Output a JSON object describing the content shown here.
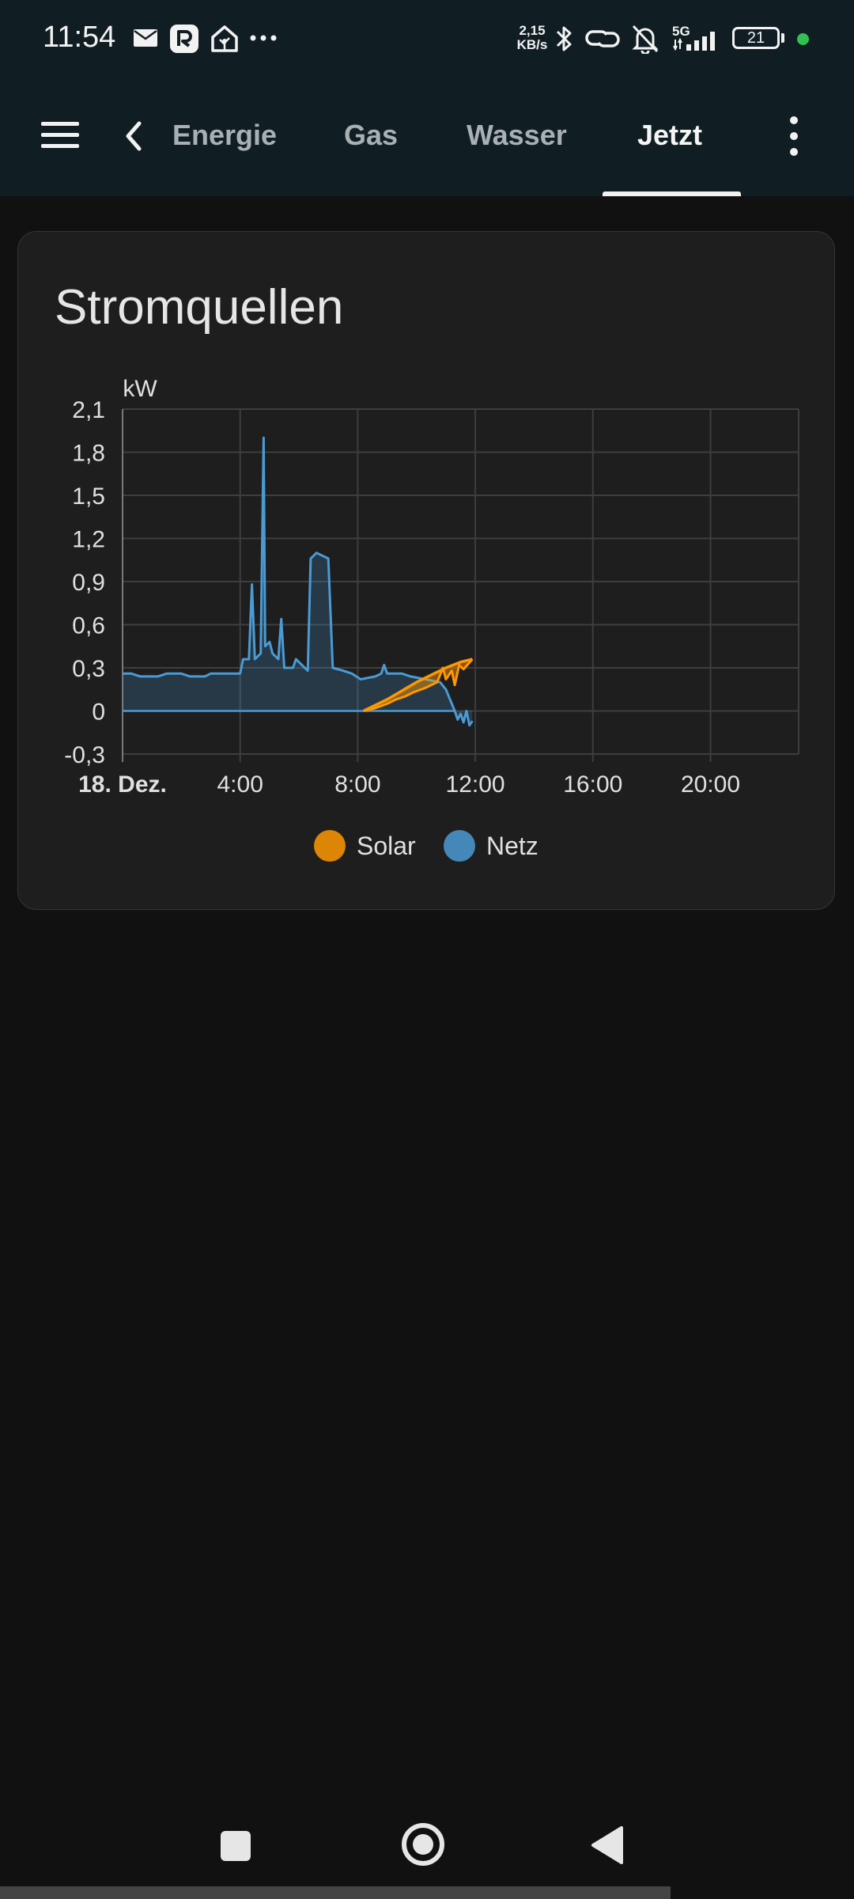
{
  "status_bar": {
    "time": "11:54",
    "net_speed_value": "2,15",
    "net_speed_unit": "KB/s",
    "network": "5G",
    "battery": "21",
    "icons": [
      "mail-icon",
      "r-app-icon",
      "home-assistant-icon",
      "more-notifications-icon",
      "bluetooth-icon",
      "link-icon",
      "bell-off-icon",
      "signal-icon",
      "battery-icon"
    ]
  },
  "toolbar": {
    "tabs": [
      {
        "label": "Energie"
      },
      {
        "label": "Gas"
      },
      {
        "label": "Wasser"
      },
      {
        "label": "Jetzt"
      }
    ],
    "active_tab": "Jetzt"
  },
  "card": {
    "title": "Stromquellen"
  },
  "chart_data": {
    "type": "area",
    "title": "Stromquellen",
    "ylabel": "kW",
    "xlabel": "",
    "ylim": [
      -0.3,
      2.1
    ],
    "xlim": [
      0,
      23
    ],
    "y_ticks": [
      "2,1",
      "1,8",
      "1,5",
      "1,2",
      "0,9",
      "0,6",
      "0,3",
      "0",
      "-0,3"
    ],
    "x_ticks": [
      "18. Dez.",
      "4:00",
      "8:00",
      "12:00",
      "16:00",
      "20:00"
    ],
    "grid": true,
    "legend_position": "bottom",
    "series": [
      {
        "name": "Solar",
        "color": "#ff9800",
        "points": [
          [
            8.2,
            0.0
          ],
          [
            8.6,
            0.04
          ],
          [
            9.0,
            0.08
          ],
          [
            9.5,
            0.14
          ],
          [
            10.0,
            0.2
          ],
          [
            10.5,
            0.25
          ],
          [
            11.0,
            0.3
          ],
          [
            11.5,
            0.34
          ],
          [
            11.9,
            0.36
          ]
        ],
        "lower": [
          [
            8.2,
            0.0
          ],
          [
            8.6,
            0.02
          ],
          [
            9.0,
            0.05
          ],
          [
            9.3,
            0.08
          ],
          [
            9.6,
            0.1
          ],
          [
            9.9,
            0.13
          ],
          [
            10.3,
            0.16
          ],
          [
            10.7,
            0.2
          ],
          [
            10.9,
            0.3
          ],
          [
            11.0,
            0.22
          ],
          [
            11.2,
            0.28
          ],
          [
            11.3,
            0.18
          ],
          [
            11.45,
            0.32
          ],
          [
            11.6,
            0.29
          ],
          [
            11.9,
            0.36
          ]
        ]
      },
      {
        "name": "Netz",
        "color": "#4a9bd4",
        "points": [
          [
            0,
            0.26
          ],
          [
            0.3,
            0.26
          ],
          [
            0.6,
            0.24
          ],
          [
            1.2,
            0.24
          ],
          [
            1.5,
            0.26
          ],
          [
            2.0,
            0.26
          ],
          [
            2.3,
            0.24
          ],
          [
            2.8,
            0.24
          ],
          [
            3.0,
            0.26
          ],
          [
            4.0,
            0.26
          ],
          [
            4.1,
            0.36
          ],
          [
            4.3,
            0.36
          ],
          [
            4.4,
            0.88
          ],
          [
            4.5,
            0.36
          ],
          [
            4.7,
            0.4
          ],
          [
            4.8,
            1.9
          ],
          [
            4.85,
            0.45
          ],
          [
            5.0,
            0.48
          ],
          [
            5.1,
            0.4
          ],
          [
            5.3,
            0.36
          ],
          [
            5.4,
            0.64
          ],
          [
            5.5,
            0.3
          ],
          [
            5.8,
            0.3
          ],
          [
            5.9,
            0.36
          ],
          [
            6.1,
            0.32
          ],
          [
            6.3,
            0.28
          ],
          [
            6.4,
            1.06
          ],
          [
            6.6,
            1.1
          ],
          [
            7.0,
            1.06
          ],
          [
            7.15,
            0.3
          ],
          [
            7.5,
            0.28
          ],
          [
            7.8,
            0.26
          ],
          [
            8.1,
            0.22
          ],
          [
            8.6,
            0.24
          ],
          [
            8.8,
            0.26
          ],
          [
            8.9,
            0.32
          ],
          [
            9.0,
            0.26
          ],
          [
            9.5,
            0.26
          ],
          [
            9.8,
            0.24
          ],
          [
            10.3,
            0.22
          ],
          [
            10.8,
            0.2
          ],
          [
            11.0,
            0.15
          ],
          [
            11.3,
            0.0
          ],
          [
            11.4,
            -0.06
          ],
          [
            11.5,
            -0.02
          ],
          [
            11.6,
            -0.08
          ],
          [
            11.7,
            0.0
          ],
          [
            11.8,
            -0.1
          ],
          [
            11.9,
            -0.07
          ]
        ]
      }
    ]
  },
  "legend": [
    {
      "label": "Solar",
      "color": "#ff9800"
    },
    {
      "label": "Netz",
      "color": "#4a9bd4"
    }
  ],
  "nav_bar": {
    "buttons": [
      "recents-button",
      "home-button",
      "back-button"
    ]
  }
}
